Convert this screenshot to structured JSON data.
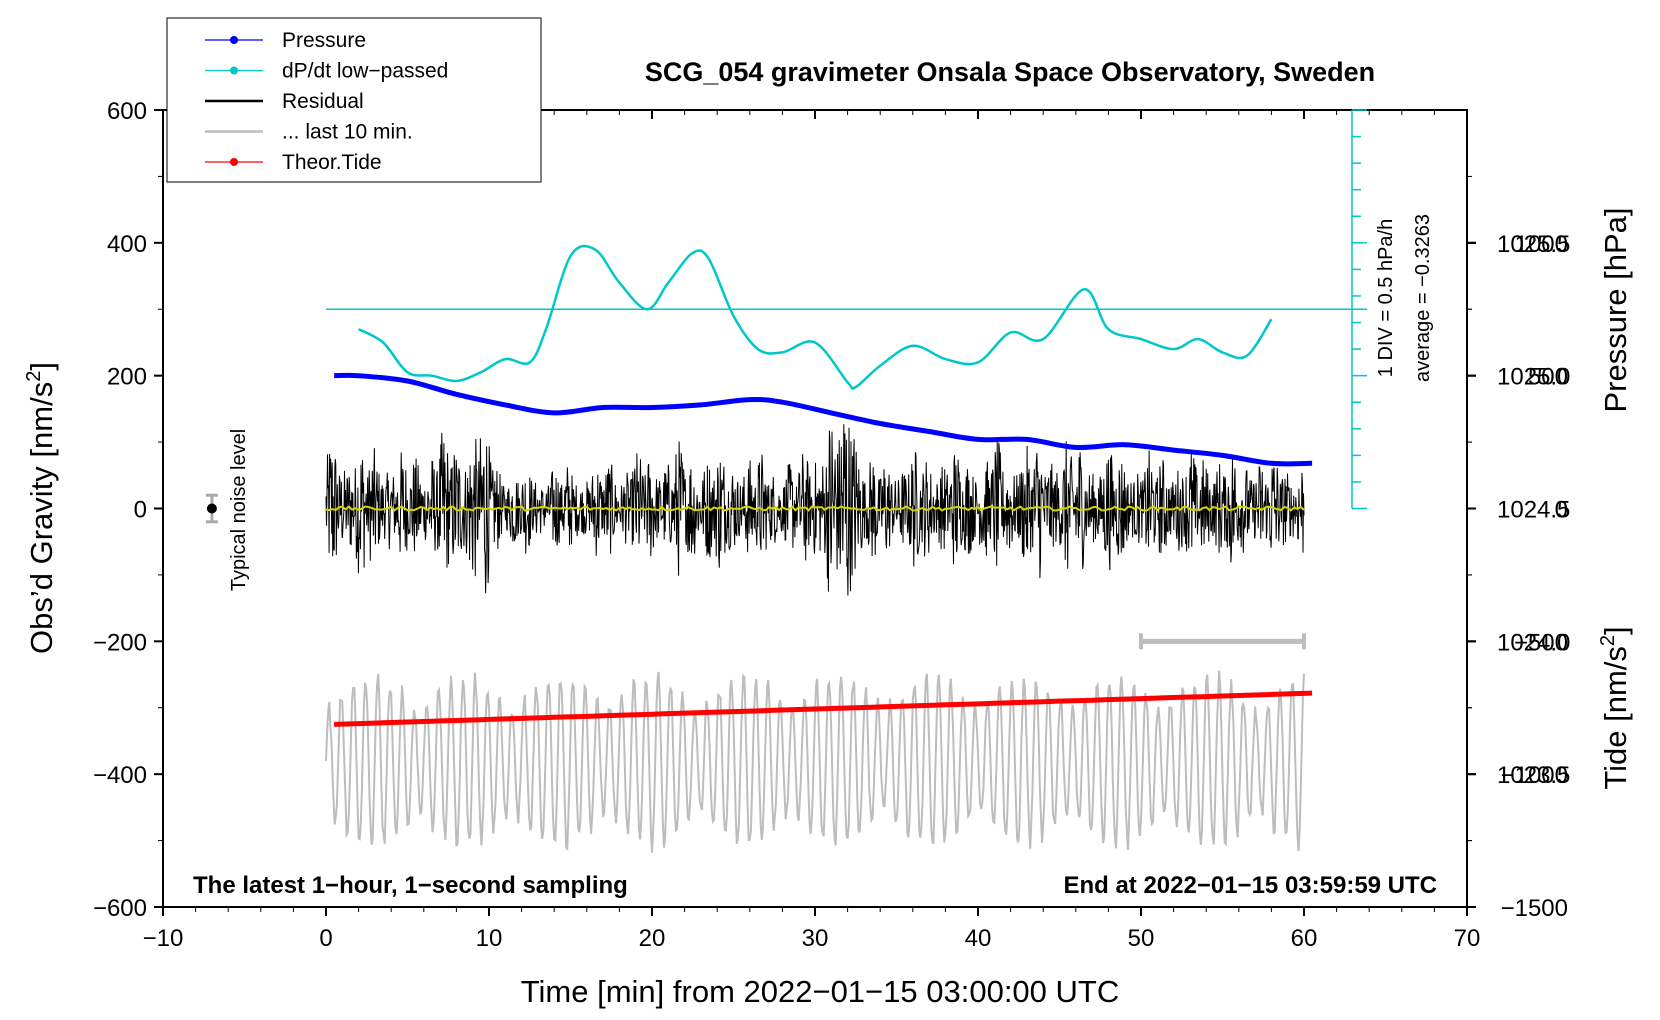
{
  "chart_data": {
    "type": "line",
    "title": "SCG_054 gravimeter Onsala Space Observatory, Sweden",
    "xlabel": "Time [min] from 2022−01−15 03:00:00 UTC",
    "ylabel_left": "Obs’d Gravity [nm/s",
    "ylabel_left_sup": "2",
    "ylabel_left_end": "]",
    "ylabel_right_pressure": "Pressure [hPa]",
    "ylabel_right_tide": "Tide [nm/s",
    "ylabel_right_tide_sup": "2",
    "ylabel_right_tide_end": "]",
    "xlim": [
      -10,
      70
    ],
    "ylim": [
      -600,
      600
    ],
    "x_ticks": [
      -10,
      0,
      10,
      20,
      30,
      40,
      50,
      60,
      70
    ],
    "x_tick_labels": [
      "−10",
      "0",
      "10",
      "20",
      "30",
      "40",
      "50",
      "60",
      "70"
    ],
    "y_ticks": [
      600,
      400,
      200,
      0,
      -200,
      -400,
      -600
    ],
    "y_tick_labels": [
      "600",
      "400",
      "200",
      "0",
      "−200",
      "−400",
      "−600"
    ],
    "pressure_axis": {
      "ticks": [
        1025.5,
        1025.0,
        1024.5,
        1024.0,
        1023.5
      ],
      "tick_labels": [
        "1025.5",
        "1025.0",
        "1024.5",
        "1024.0",
        "1023.5"
      ],
      "range": [
        1023.0,
        1026.0
      ]
    },
    "tide_axis": {
      "ticks": [
        1000,
        500,
        0,
        -500,
        -1000,
        -1500
      ],
      "tick_labels": [
        "1000",
        "500",
        "0",
        "−500",
        "−1000",
        "−1500"
      ],
      "range": [
        -1500,
        1500
      ]
    },
    "legend": [
      {
        "label": "Pressure",
        "color": "#0000ff",
        "marker": true
      },
      {
        "label": "dP/dt low−passed",
        "color": "#00c8c8",
        "marker": true
      },
      {
        "label": "Residual",
        "color": "#000000",
        "marker": false
      },
      {
        "label": "... last 10 min.",
        "color": "#bdbdbd",
        "marker": false
      },
      {
        "label": "Theor.Tide",
        "color": "#ff0000",
        "marker": true
      }
    ],
    "series": [
      {
        "name": "Pressure",
        "color": "#0000ff",
        "units": "hPa",
        "x": [
          0.5,
          2,
          5,
          8,
          11,
          14,
          17,
          20,
          23,
          26,
          28,
          31,
          34,
          37,
          40,
          43,
          46,
          49,
          52,
          55,
          58,
          60.5
        ],
        "values": [
          1025.0,
          1025.0,
          1024.98,
          1024.93,
          1024.89,
          1024.86,
          1024.88,
          1024.88,
          1024.89,
          1024.91,
          1024.9,
          1024.86,
          1024.82,
          1024.79,
          1024.76,
          1024.76,
          1024.73,
          1024.74,
          1024.72,
          1024.7,
          1024.67,
          1024.67
        ]
      },
      {
        "name": "dP/dt low−passed",
        "color": "#00c8c8",
        "units": "nm/s2 scale",
        "x": [
          2,
          3.5,
          5,
          6.5,
          8,
          9.5,
          11,
          12.5,
          13.5,
          15,
          16.5,
          18,
          19.7,
          21,
          22.5,
          23.5,
          25,
          26.5,
          28,
          30,
          32,
          32.5,
          34,
          36,
          38,
          40,
          42,
          44,
          46.5,
          48,
          50,
          52,
          53.5,
          55,
          56.5,
          58
        ],
        "values": [
          270,
          250,
          205,
          200,
          192,
          205,
          225,
          220,
          270,
          380,
          390,
          340,
          300,
          340,
          385,
          375,
          290,
          240,
          235,
          250,
          190,
          183,
          215,
          245,
          225,
          220,
          265,
          255,
          330,
          270,
          255,
          240,
          255,
          235,
          230,
          285
        ]
      },
      {
        "name": "Residual",
        "color": "#000000",
        "units": "nm/s2",
        "x": [
          0,
          60
        ],
        "values": [
          0,
          0
        ],
        "envelope_amplitude": [
          [
            0,
            130
          ],
          [
            5,
            90
          ],
          [
            9.5,
            160
          ],
          [
            11,
            70
          ],
          [
            17,
            80
          ],
          [
            22,
            110
          ],
          [
            29,
            80
          ],
          [
            32.4,
            240
          ],
          [
            33,
            90
          ],
          [
            40,
            100
          ],
          [
            45,
            120
          ],
          [
            50,
            90
          ],
          [
            55,
            100
          ],
          [
            60,
            90
          ]
        ]
      },
      {
        "name": "Residual smoothed",
        "color": "#d4d400",
        "units": "nm/s2",
        "x": [
          0,
          60
        ],
        "values": [
          0,
          0
        ]
      },
      {
        "name": "... last 10 min.",
        "color": "#bdbdbd",
        "units": "nm/s2",
        "x": [
          0,
          60
        ],
        "values": [
          -380,
          -380
        ]
      },
      {
        "name": "Theor.Tide",
        "color": "#ff0000",
        "units": "nm/s2 tide",
        "x": [
          0.5,
          60.5
        ],
        "values": [
          -325,
          -278
        ]
      }
    ],
    "last10_bar": {
      "x": [
        50,
        60
      ],
      "y": -200
    },
    "noise_level": {
      "x": -7,
      "y": 0,
      "err": 20,
      "label": "Typical noise level"
    },
    "dpdt_scale": {
      "label1": "1 DIV = 0.5 hPa/h",
      "label2": "average = −0.3263",
      "baseline": 300
    },
    "annotations": {
      "left": "The latest 1−hour, 1−second sampling",
      "right": "End at 2022−01−15 03:59:59 UTC"
    }
  }
}
